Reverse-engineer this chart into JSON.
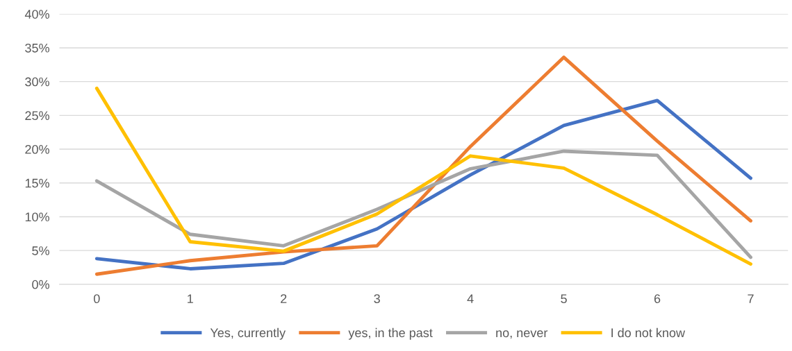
{
  "chart_data": {
    "type": "line",
    "categories": [
      "0",
      "1",
      "2",
      "3",
      "4",
      "5",
      "6",
      "7"
    ],
    "series": [
      {
        "name": "Yes, currently",
        "color": "#4472c4",
        "values": [
          3.8,
          2.3,
          3.1,
          8.2,
          16.2,
          23.5,
          27.2,
          15.7
        ]
      },
      {
        "name": "yes, in the past",
        "color": "#ed7d31",
        "values": [
          1.5,
          3.5,
          4.8,
          5.7,
          20.4,
          33.6,
          21.2,
          9.4
        ]
      },
      {
        "name": "no, never",
        "color": "#a5a5a5",
        "values": [
          15.3,
          7.4,
          5.7,
          11.1,
          17.1,
          19.7,
          19.1,
          4.0
        ]
      },
      {
        "name": "I do not know",
        "color": "#ffc000",
        "values": [
          29.0,
          6.3,
          4.9,
          10.4,
          19.0,
          17.2,
          10.3,
          3.0
        ]
      }
    ],
    "ylim": [
      0,
      40
    ],
    "yticks": [
      {
        "value": 0,
        "label": "0%"
      },
      {
        "value": 5,
        "label": "5%"
      },
      {
        "value": 10,
        "label": "10%"
      },
      {
        "value": 15,
        "label": "15%"
      },
      {
        "value": 20,
        "label": "20%"
      },
      {
        "value": 25,
        "label": "25%"
      },
      {
        "value": 30,
        "label": "30%"
      },
      {
        "value": 35,
        "label": "35%"
      },
      {
        "value": 40,
        "label": "40%"
      }
    ],
    "grid": "y",
    "legend": "bottom",
    "marker": "none",
    "line_style": "solid"
  }
}
